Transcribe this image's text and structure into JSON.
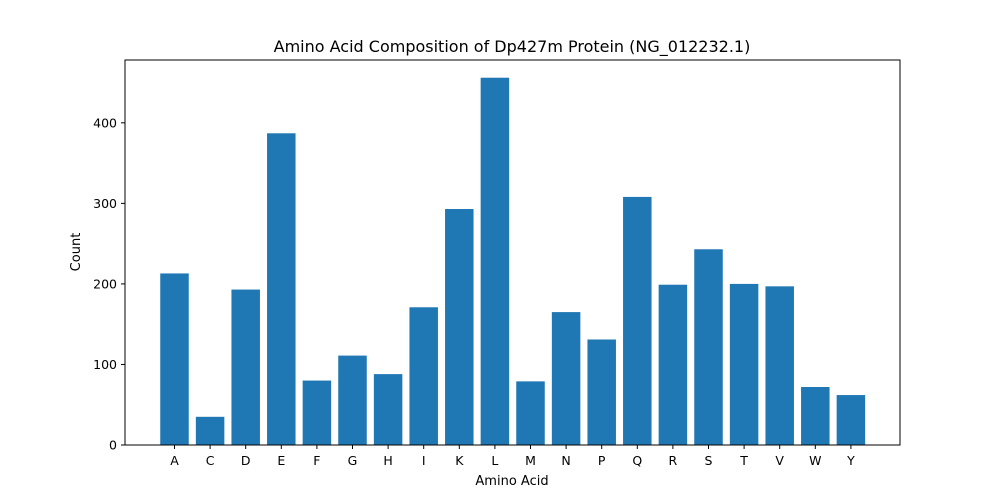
{
  "chart_data": {
    "type": "bar",
    "title": "Amino Acid Composition of Dp427m Protein (NG_012232.1)",
    "xlabel": "Amino Acid",
    "ylabel": "Count",
    "categories": [
      "A",
      "C",
      "D",
      "E",
      "F",
      "G",
      "H",
      "I",
      "K",
      "L",
      "M",
      "N",
      "P",
      "Q",
      "R",
      "S",
      "T",
      "V",
      "W",
      "Y"
    ],
    "values": [
      213,
      35,
      193,
      387,
      80,
      111,
      88,
      171,
      293,
      456,
      79,
      165,
      131,
      308,
      199,
      243,
      200,
      197,
      72,
      62
    ],
    "ylim": [
      0,
      478
    ],
    "yticks": [
      0,
      100,
      200,
      300,
      400
    ],
    "bar_color": "#1f77b4",
    "grid": false,
    "legend": false
  }
}
